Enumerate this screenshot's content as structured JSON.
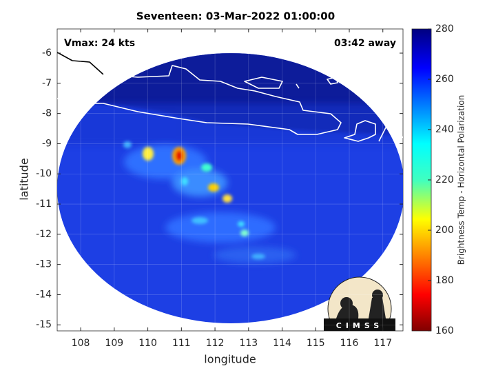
{
  "title": "Seventeen: 03-Mar-2022 01:00:00",
  "annotations": {
    "vmax": "Vmax: 24 kts",
    "time_away": "03:42 away"
  },
  "map": {
    "xlabel": "longitude",
    "ylabel": "latitude",
    "xlim": [
      107.3,
      117.6
    ],
    "ylim": [
      -15.2,
      -5.2
    ],
    "xticks": [
      108,
      109,
      110,
      111,
      112,
      113,
      114,
      115,
      116,
      117
    ],
    "yticks": [
      -6,
      -7,
      -8,
      -9,
      -10,
      -11,
      -12,
      -13,
      -14,
      -15
    ],
    "grid": true
  },
  "colorbar": {
    "label": "Brightness Temp - Horizontal Polarization",
    "lim": [
      160,
      280
    ],
    "ticks": [
      160,
      180,
      200,
      220,
      240,
      260,
      280
    ]
  },
  "logo": {
    "text": "CIMSS"
  }
}
